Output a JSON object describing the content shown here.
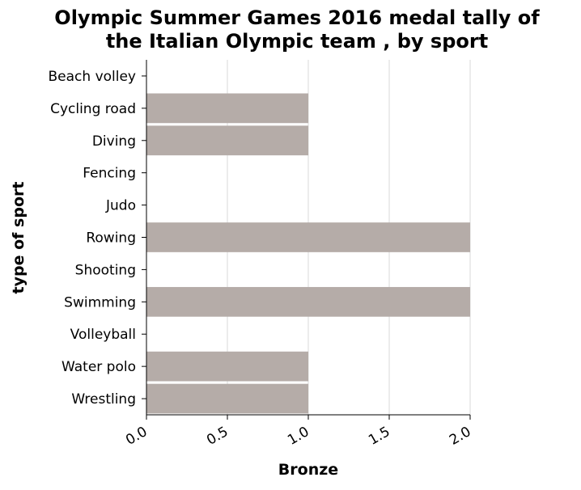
{
  "chart_data": {
    "type": "bar",
    "orientation": "horizontal",
    "title_lines": [
      "Olympic Summer Games 2016 medal tally of",
      "the Italian Olympic team , by sport"
    ],
    "xlabel": "Bronze",
    "ylabel": "type of sport",
    "categories": [
      "Beach volley",
      "Cycling road",
      "Diving",
      "Fencing",
      "Judo",
      "Rowing",
      "Shooting",
      "Swimming",
      "Volleyball",
      "Water polo",
      "Wrestling"
    ],
    "values": [
      0,
      1,
      1,
      0,
      0,
      2,
      0,
      2,
      0,
      1,
      1
    ],
    "xlim": [
      0,
      2
    ],
    "xticks": [
      0,
      0.5,
      1,
      1.5,
      2
    ],
    "xtick_labels": [
      "0.0",
      "0.5",
      "1.0",
      "1.5",
      "2.0"
    ],
    "grid": "vertical",
    "bar_color": "#b5aca8"
  }
}
